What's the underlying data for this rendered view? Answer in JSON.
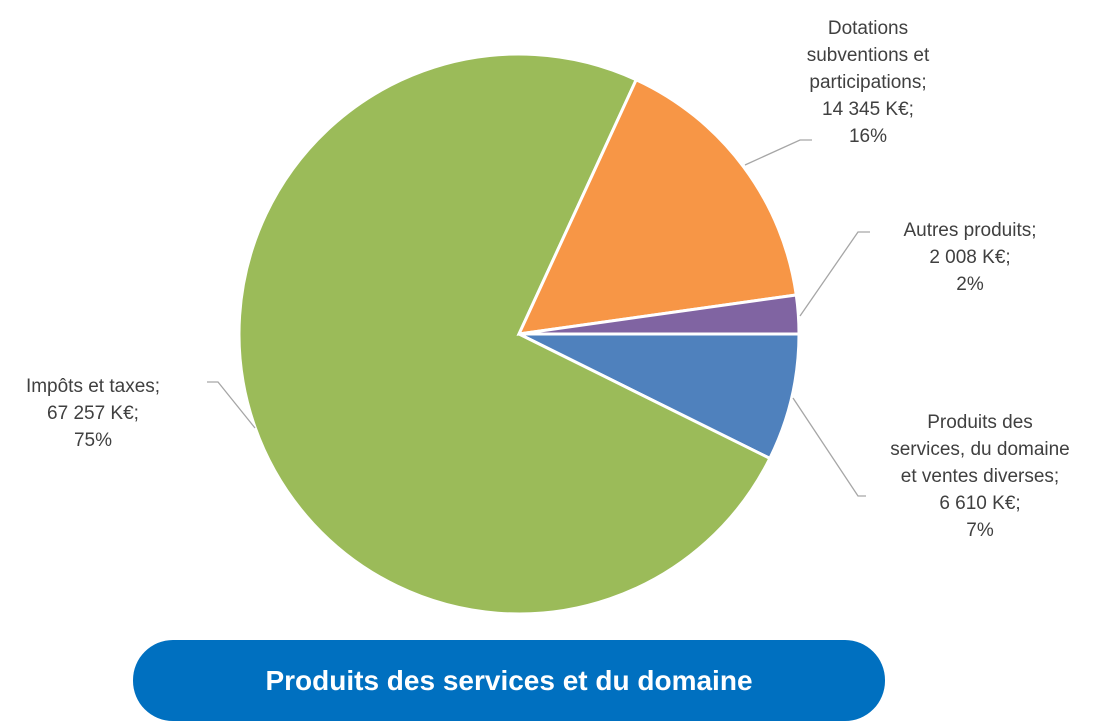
{
  "chart_data": {
    "type": "pie",
    "title": "Produits des services et du domaine",
    "categories": [
      "Produits des services, du domaine et ventes diverses;",
      "Impôts et taxes;",
      "Dotations subventions et participations;",
      "Autres produits;"
    ],
    "values": [
      6610,
      67257,
      14345,
      2008
    ],
    "value_labels": [
      "6 610 K€;",
      "67 257 K€;",
      "14 345 K€;",
      "2 008 K€;"
    ],
    "percentages": [
      7,
      75,
      16,
      2
    ],
    "percentage_labels": [
      "7%",
      "75%",
      "16%",
      "2%"
    ],
    "colors": [
      "#4f81bd",
      "#9bbb59",
      "#f79646",
      "#8064a2"
    ]
  }
}
